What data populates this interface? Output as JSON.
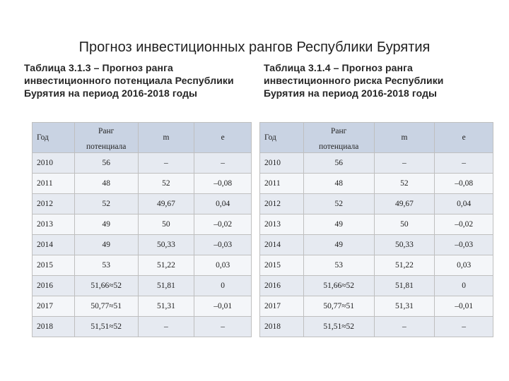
{
  "slide": {
    "title": "Прогноз инвестиционных рангов Республики Бурятия"
  },
  "left_table": {
    "caption": "Таблица 3.1.3 – Прогноз ранга инвестиционного потенциала Республики Бурятия на период 2016-2018 годы",
    "headers": {
      "year": "Год",
      "rank_top": "Ранг",
      "rank_bottom": "потенциала",
      "m": "m",
      "e": "e"
    },
    "rows": [
      [
        "2010",
        "56",
        "–",
        "–"
      ],
      [
        "2011",
        "48",
        "52",
        "–0,08"
      ],
      [
        "2012",
        "52",
        "49,67",
        "0,04"
      ],
      [
        "2013",
        "49",
        "50",
        "–0,02"
      ],
      [
        "2014",
        "49",
        "50,33",
        "–0,03"
      ],
      [
        "2015",
        "53",
        "51,22",
        "0,03"
      ],
      [
        "2016",
        "51,66≈52",
        "51,81",
        "0"
      ],
      [
        "2017",
        "50,77≈51",
        "51,31",
        "–0,01"
      ],
      [
        "2018",
        "51,51≈52",
        "–",
        "–"
      ]
    ]
  },
  "right_table": {
    "caption": "Таблица 3.1.4 – Прогноз ранга инвестиционного риска Республики Бурятия на период 2016-2018 годы",
    "headers": {
      "year": "Год",
      "rank_top": "Ранг",
      "rank_bottom": "потенциала",
      "m": "m",
      "e": "e"
    },
    "rows": [
      [
        "2010",
        "56",
        "–",
        "–"
      ],
      [
        "2011",
        "48",
        "52",
        "–0,08"
      ],
      [
        "2012",
        "52",
        "49,67",
        "0,04"
      ],
      [
        "2013",
        "49",
        "50",
        "–0,02"
      ],
      [
        "2014",
        "49",
        "50,33",
        "–0,03"
      ],
      [
        "2015",
        "53",
        "51,22",
        "0,03"
      ],
      [
        "2016",
        "51,66≈52",
        "51,81",
        "0"
      ],
      [
        "2017",
        "50,77≈51",
        "51,31",
        "–0,01"
      ],
      [
        "2018",
        "51,51≈52",
        "–",
        "–"
      ]
    ]
  },
  "colors": {
    "header_fill": "#c9d3e3",
    "row_odd": "#e6eaf1",
    "row_even": "#f4f6f9",
    "border": "#bfbfbf"
  }
}
